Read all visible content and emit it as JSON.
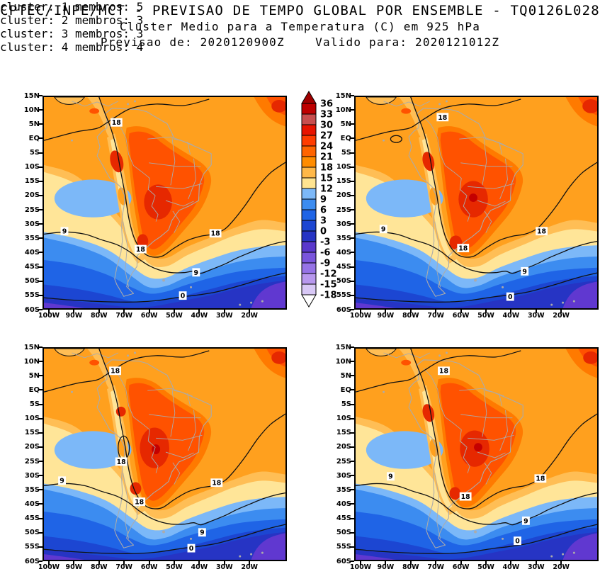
{
  "header": {
    "line1": "CPTEC/INPE/MCT - PREVISAO DE TEMPO GLOBAL POR ENSEMBLE - TQ0126L028",
    "line2": "Cluster Medio para a Temperatura (C) em 925 hPa",
    "line3": "Previsao de: 2020120900Z    Valido para: 2020121012Z"
  },
  "chart_data": {
    "type": "heatmap",
    "title": "CPTEC/INPE/MCT - PREVISAO DE TEMPO GLOBAL POR ENSEMBLE - TQ0126L028",
    "subtitle": "Cluster Medio para a Temperatura (C) em 925 hPa",
    "forecast_from": "2020120900Z",
    "valid_for": "2020121012Z",
    "variable": "Temperatura (C) em 925 hPa",
    "contour_interval": 9,
    "shade_interval": 3,
    "x_axis": {
      "ticks": [
        "100W",
        "90W",
        "80W",
        "70W",
        "60W",
        "50W",
        "40W",
        "30W",
        "20W"
      ]
    },
    "y_axis": {
      "ticks": [
        "15N",
        "10N",
        "5N",
        "EQ",
        "5S",
        "10S",
        "15S",
        "20S",
        "25S",
        "30S",
        "35S",
        "40S",
        "45S",
        "50S",
        "55S",
        "60S"
      ]
    },
    "colorbar": {
      "levels": [
        36,
        33,
        30,
        27,
        24,
        21,
        18,
        15,
        12,
        9,
        6,
        3,
        0,
        -3,
        -6,
        -9,
        -12,
        -15,
        -18
      ],
      "band_colors": [
        "#BE0000",
        "#C84E4E",
        "#E81400",
        "#FF3C00",
        "#FF6400",
        "#FF8C00",
        "#FFB848",
        "#FFE490",
        "#7CB8F8",
        "#3C8CF0",
        "#1F64E6",
        "#1C46D2",
        "#2634C4",
        "#5A38CC",
        "#7A55DC",
        "#9673E6",
        "#B898EE",
        "#D8C8F6"
      ],
      "above_color": "#A00000",
      "below_color": "#FFFFFF"
    },
    "panels": [
      {
        "title": "cluster: 1   membros: 5",
        "cluster": 1,
        "members": 5,
        "andes_loop": false,
        "eq_loop": false,
        "contour_labels": [
          {
            "value": "18",
            "x": 30,
            "y": 12
          },
          {
            "value": "9",
            "x": 8.5,
            "y": 63.5
          },
          {
            "value": "18",
            "x": 71,
            "y": 64.5
          },
          {
            "value": "18",
            "x": 40,
            "y": 72
          },
          {
            "value": "9",
            "x": 63,
            "y": 83
          },
          {
            "value": "0",
            "x": 57.5,
            "y": 94
          }
        ],
        "warm_cores": [
          [
            104,
            92,
            9,
            16,
            -15,
            "red"
          ],
          [
            163,
            150,
            20,
            25,
            0,
            "red"
          ],
          [
            141,
            206,
            8,
            10,
            0,
            "red"
          ],
          [
            336,
            13,
            11,
            9,
            0,
            "red"
          ]
        ]
      },
      {
        "title": "cluster: 2   membros: 3",
        "cluster": 2,
        "members": 3,
        "andes_loop": false,
        "eq_loop": true,
        "contour_labels": [
          {
            "value": "18",
            "x": 36,
            "y": 9.5
          },
          {
            "value": "9",
            "x": 11.5,
            "y": 62.5
          },
          {
            "value": "18",
            "x": 77,
            "y": 63.5
          },
          {
            "value": "18",
            "x": 44.5,
            "y": 71.5
          },
          {
            "value": "9",
            "x": 70,
            "y": 82.5
          },
          {
            "value": "0",
            "x": 64,
            "y": 94.5
          }
        ],
        "warm_cores": [
          [
            104,
            92,
            8,
            14,
            -15,
            "red"
          ],
          [
            168,
            146,
            21,
            26,
            0,
            "red"
          ],
          [
            143,
            208,
            9,
            10,
            0,
            "red"
          ],
          [
            336,
            13,
            12,
            10,
            0,
            "red"
          ],
          [
            168,
            144,
            6,
            6,
            0,
            "dark"
          ]
        ]
      },
      {
        "title": "cluster: 3   membros: 3",
        "cluster": 3,
        "members": 3,
        "andes_loop": true,
        "eq_loop": false,
        "contour_labels": [
          {
            "value": "18",
            "x": 29.5,
            "y": 10.5
          },
          {
            "value": "18",
            "x": 32,
            "y": 53.5
          },
          {
            "value": "9",
            "x": 7.5,
            "y": 62.5
          },
          {
            "value": "18",
            "x": 71.5,
            "y": 63.5
          },
          {
            "value": "18",
            "x": 39.5,
            "y": 72.5
          },
          {
            "value": "9",
            "x": 65.5,
            "y": 87
          },
          {
            "value": "0",
            "x": 61,
            "y": 94.5
          }
        ],
        "warm_cores": [
          [
            110,
            90,
            7,
            7,
            0,
            "red"
          ],
          [
            158,
            142,
            21,
            29,
            0,
            "red"
          ],
          [
            131,
            200,
            8,
            9,
            0,
            "red"
          ],
          [
            336,
            13,
            11,
            9,
            0,
            "red"
          ],
          [
            160,
            144,
            6,
            7,
            0,
            "dark"
          ]
        ]
      },
      {
        "title": "cluster: 4   membros: 4",
        "cluster": 4,
        "members": 4,
        "andes_loop": false,
        "eq_loop": false,
        "contour_labels": [
          {
            "value": "18",
            "x": 36.5,
            "y": 10.5
          },
          {
            "value": "9",
            "x": 14.5,
            "y": 60.5
          },
          {
            "value": "18",
            "x": 76.5,
            "y": 61.5
          },
          {
            "value": "18",
            "x": 45.5,
            "y": 70
          },
          {
            "value": "9",
            "x": 70.5,
            "y": 81.5
          },
          {
            "value": "0",
            "x": 67,
            "y": 91
          }
        ],
        "warm_cores": [
          [
            104,
            92,
            8,
            13,
            -15,
            "red"
          ],
          [
            170,
            143,
            21,
            26,
            0,
            "red"
          ],
          [
            142,
            207,
            8,
            9,
            0,
            "red"
          ],
          [
            336,
            13,
            11,
            9,
            0,
            "red"
          ],
          [
            175,
            141,
            6,
            6,
            0,
            "dark"
          ]
        ]
      }
    ]
  },
  "map_colors": {
    "background": "#FFA01E",
    "band_21_24": "#FF7A00",
    "band_24_27": "#FF5200",
    "band_27_30": "#E62800",
    "band_30_33": "#C40000",
    "band_15_18": "#FFBE55",
    "band_12_15": "#FFE598",
    "band_9_12": "#7CB8F8",
    "band_6_9": "#3C8CF0",
    "band_3_6": "#1F64E6",
    "band_0_3": "#1C46D2",
    "band_m3_0": "#2634C4",
    "band_m6_m3": "#6038D0",
    "coastline": "#ABABAB",
    "contour_line": "#111111",
    "frame": "#000000"
  }
}
